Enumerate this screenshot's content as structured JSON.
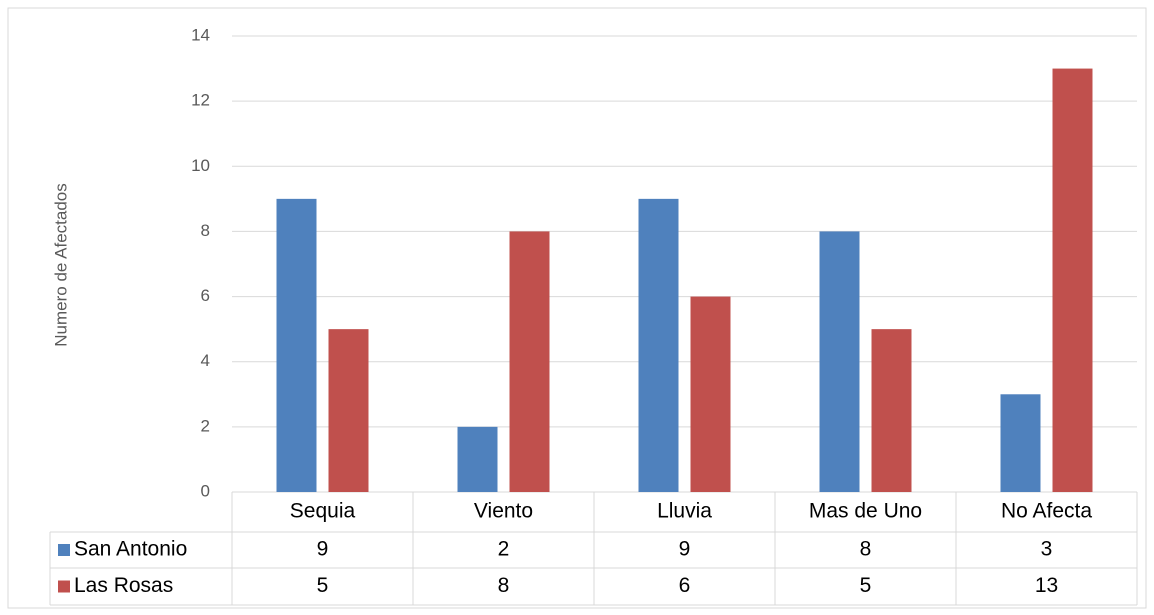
{
  "chart_data": {
    "type": "bar",
    "y_label": "Numero de Afectados",
    "categories": [
      "Sequia",
      "Viento",
      "Lluvia",
      "Mas de Uno",
      "No Afecta"
    ],
    "series": [
      {
        "name": "San Antonio",
        "color": "#4f81bd",
        "values": [
          9,
          2,
          9,
          8,
          3
        ]
      },
      {
        "name": "Las Rosas",
        "color": "#c0504d",
        "values": [
          5,
          8,
          6,
          5,
          13
        ]
      }
    ],
    "ylim": [
      0,
      14
    ],
    "yticks": [
      0,
      2,
      4,
      6,
      8,
      10,
      12,
      14
    ],
    "grid": true,
    "data_table": true
  }
}
